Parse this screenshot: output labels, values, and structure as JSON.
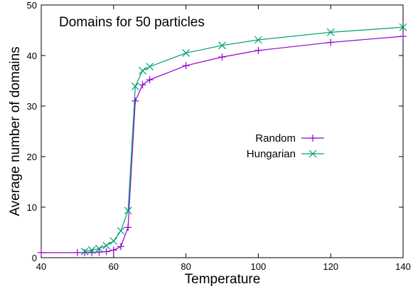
{
  "chart_data": {
    "type": "line",
    "title": "Domains for 50 particles",
    "xlabel": "Temperature",
    "ylabel": "Average number of domains",
    "xlim": [
      40,
      140
    ],
    "ylim": [
      0,
      50
    ],
    "xticks": [
      40,
      60,
      80,
      100,
      120,
      140
    ],
    "yticks": [
      0,
      10,
      20,
      30,
      40,
      50
    ],
    "grid": false,
    "legend_position": "right-middle",
    "series": [
      {
        "name": "Random",
        "color": "#9400d3",
        "marker": "plus",
        "x": [
          40,
          50,
          52,
          54,
          56,
          58,
          60,
          62,
          64,
          66,
          68,
          70,
          80,
          90,
          100,
          120,
          140
        ],
        "y": [
          1.0,
          1.0,
          1.0,
          1.0,
          1.1,
          1.2,
          1.5,
          2.2,
          6.0,
          31.0,
          34.2,
          35.2,
          38.0,
          39.7,
          41.0,
          42.6,
          43.8
        ]
      },
      {
        "name": "Hungarian",
        "color": "#009e73",
        "marker": "cross",
        "x": [
          52,
          54,
          56,
          58,
          60,
          62,
          64,
          66,
          68,
          70,
          80,
          90,
          100,
          120,
          140
        ],
        "y": [
          1.2,
          1.5,
          1.8,
          2.4,
          3.3,
          5.3,
          9.3,
          33.9,
          37.0,
          37.8,
          40.5,
          42.0,
          43.1,
          44.6,
          45.6
        ]
      }
    ]
  }
}
